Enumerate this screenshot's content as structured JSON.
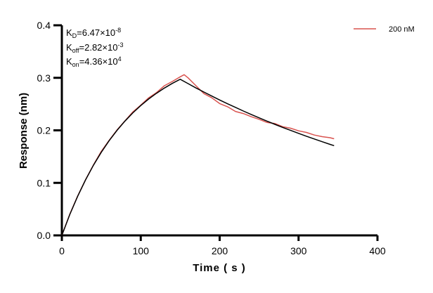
{
  "chart_data": {
    "type": "line",
    "xlabel": "Time ( s )",
    "ylabel": "Response (nm)",
    "xlim": [
      0,
      400
    ],
    "ylim": [
      0,
      0.4
    ],
    "xticks": [
      "0",
      "100",
      "200",
      "300",
      "400"
    ],
    "yticks": [
      "0.0",
      "0.1",
      "0.2",
      "0.3",
      "0.4"
    ],
    "grid": false,
    "legend_placement": "top-right",
    "annotations": {
      "kd": {
        "label": "K",
        "sub": "D",
        "value": "=6.47×10",
        "exp": "-8"
      },
      "koff": {
        "label": "K",
        "sub": "off",
        "value": "=2.82×10",
        "exp": "-3"
      },
      "kon": {
        "label": "K",
        "sub": "on",
        "value": "=4.36×10",
        "exp": "4"
      }
    },
    "series": [
      {
        "name": "200 nM",
        "color": "#d9534f",
        "x": [
          0,
          10,
          20,
          30,
          40,
          50,
          60,
          70,
          80,
          90,
          100,
          110,
          120,
          130,
          140,
          150,
          155,
          160,
          170,
          180,
          190,
          200,
          210,
          220,
          230,
          240,
          250,
          260,
          270,
          280,
          290,
          300,
          310,
          320,
          330,
          340,
          345
        ],
        "y": [
          0,
          0.04,
          0.075,
          0.106,
          0.134,
          0.16,
          0.181,
          0.201,
          0.218,
          0.235,
          0.248,
          0.262,
          0.272,
          0.285,
          0.293,
          0.302,
          0.306,
          0.3,
          0.285,
          0.27,
          0.262,
          0.251,
          0.245,
          0.236,
          0.232,
          0.226,
          0.221,
          0.215,
          0.213,
          0.207,
          0.204,
          0.199,
          0.196,
          0.191,
          0.188,
          0.186,
          0.184
        ]
      }
    ],
    "fit": {
      "color": "#000000",
      "x": [
        0,
        10,
        20,
        30,
        40,
        50,
        60,
        70,
        80,
        90,
        100,
        110,
        120,
        130,
        140,
        150,
        160,
        170,
        180,
        190,
        200,
        210,
        220,
        230,
        240,
        250,
        260,
        270,
        280,
        290,
        300,
        310,
        320,
        330,
        340,
        345
      ],
      "y": [
        0,
        0.0394,
        0.0745,
        0.1057,
        0.1335,
        0.1583,
        0.1804,
        0.2001,
        0.2176,
        0.2333,
        0.2472,
        0.2597,
        0.2707,
        0.2806,
        0.2894,
        0.2972,
        0.2889,
        0.2807,
        0.2729,
        0.2653,
        0.2578,
        0.2506,
        0.2437,
        0.2368,
        0.2302,
        0.2238,
        0.2175,
        0.2114,
        0.2055,
        0.1998,
        0.1942,
        0.1887,
        0.1835,
        0.1783,
        0.1733,
        0.1709
      ]
    }
  }
}
